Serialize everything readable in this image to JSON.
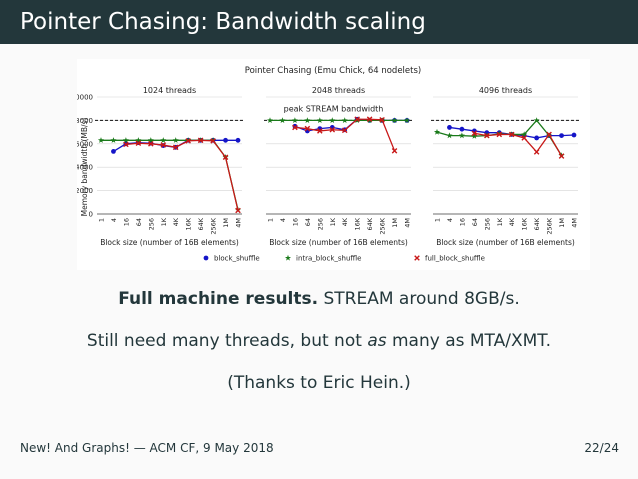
{
  "slide": {
    "title": "Pointer Chasing: Bandwidth scaling",
    "line1_bold": "Full machine results.",
    "line1_rest": " STREAM around 8GB/s.",
    "line2_a": "Still need many threads, but not ",
    "line2_em": "as",
    "line2_b": " many as MTA/XMT.",
    "line3": "(Thanks to Eric Hein.)",
    "footer_left": "New! And Graphs! — ACM CF, 9 May 2018",
    "footer_right": "22/24"
  },
  "chart_data": {
    "type": "line",
    "title": "Pointer Chasing (Emu Chick, 64 nodelets)",
    "ylabel": "Memory bandwidth (MB/s)",
    "xlabel": "Block size (number of 16B elements)",
    "ylim": [
      0,
      10000
    ],
    "yticks": [
      0,
      2000,
      4000,
      6000,
      8000,
      10000
    ],
    "categories": [
      "1",
      "4",
      "16",
      "64",
      "256",
      "1K",
      "4K",
      "16K",
      "64K",
      "256K",
      "1M",
      "4M"
    ],
    "grid": true,
    "legend_placement": "bottom",
    "legend": [
      {
        "name": "block_shuffle",
        "marker": "circle",
        "color": "#1515c8"
      },
      {
        "name": "intra_block_shuffle",
        "marker": "star",
        "color": "#1a7a1a"
      },
      {
        "name": "full_block_shuffle",
        "marker": "x",
        "color": "#c81818"
      }
    ],
    "reference_line": {
      "value": 8000,
      "label": "peak STREAM bandwidth",
      "style": "dashed"
    },
    "panels": [
      {
        "title": "1024 threads",
        "series": [
          {
            "name": "block_shuffle",
            "values": [
              null,
              5350,
              6000,
              6100,
              6050,
              5850,
              5700,
              6300,
              6300,
              6300,
              6300,
              6300
            ]
          },
          {
            "name": "intra_block_shuffle",
            "values": [
              6300,
              6300,
              6300,
              6300,
              6300,
              6300,
              6300,
              6300,
              6300,
              6300,
              4850,
              350
            ]
          },
          {
            "name": "full_block_shuffle",
            "values": [
              null,
              null,
              5950,
              6050,
              6000,
              5900,
              5700,
              6250,
              6300,
              6250,
              4850,
              300
            ]
          }
        ]
      },
      {
        "title": "2048 threads",
        "series": [
          {
            "name": "block_shuffle",
            "values": [
              null,
              null,
              7500,
              7100,
              7300,
              7400,
              7200,
              8100,
              8000,
              8000,
              8000,
              8000
            ]
          },
          {
            "name": "intra_block_shuffle",
            "values": [
              8000,
              8000,
              8000,
              8000,
              8000,
              8000,
              8000,
              8000,
              8000,
              8000,
              8000,
              8000
            ]
          },
          {
            "name": "full_block_shuffle",
            "values": [
              null,
              null,
              7400,
              7300,
              7100,
              7200,
              7150,
              8100,
              8100,
              8050,
              5400,
              null
            ]
          }
        ]
      },
      {
        "title": "4096 threads",
        "series": [
          {
            "name": "block_shuffle",
            "values": [
              null,
              7400,
              7250,
              7100,
              6950,
              6950,
              6800,
              6700,
              6500,
              6700,
              6700,
              6750
            ]
          },
          {
            "name": "intra_block_shuffle",
            "values": [
              7000,
              6700,
              6700,
              6650,
              6700,
              6850,
              6800,
              6800,
              8000,
              6700,
              5000,
              null
            ]
          },
          {
            "name": "full_block_shuffle",
            "values": [
              null,
              null,
              null,
              6900,
              6700,
              6800,
              6800,
              6500,
              5300,
              6800,
              4950,
              null
            ]
          }
        ]
      }
    ]
  }
}
